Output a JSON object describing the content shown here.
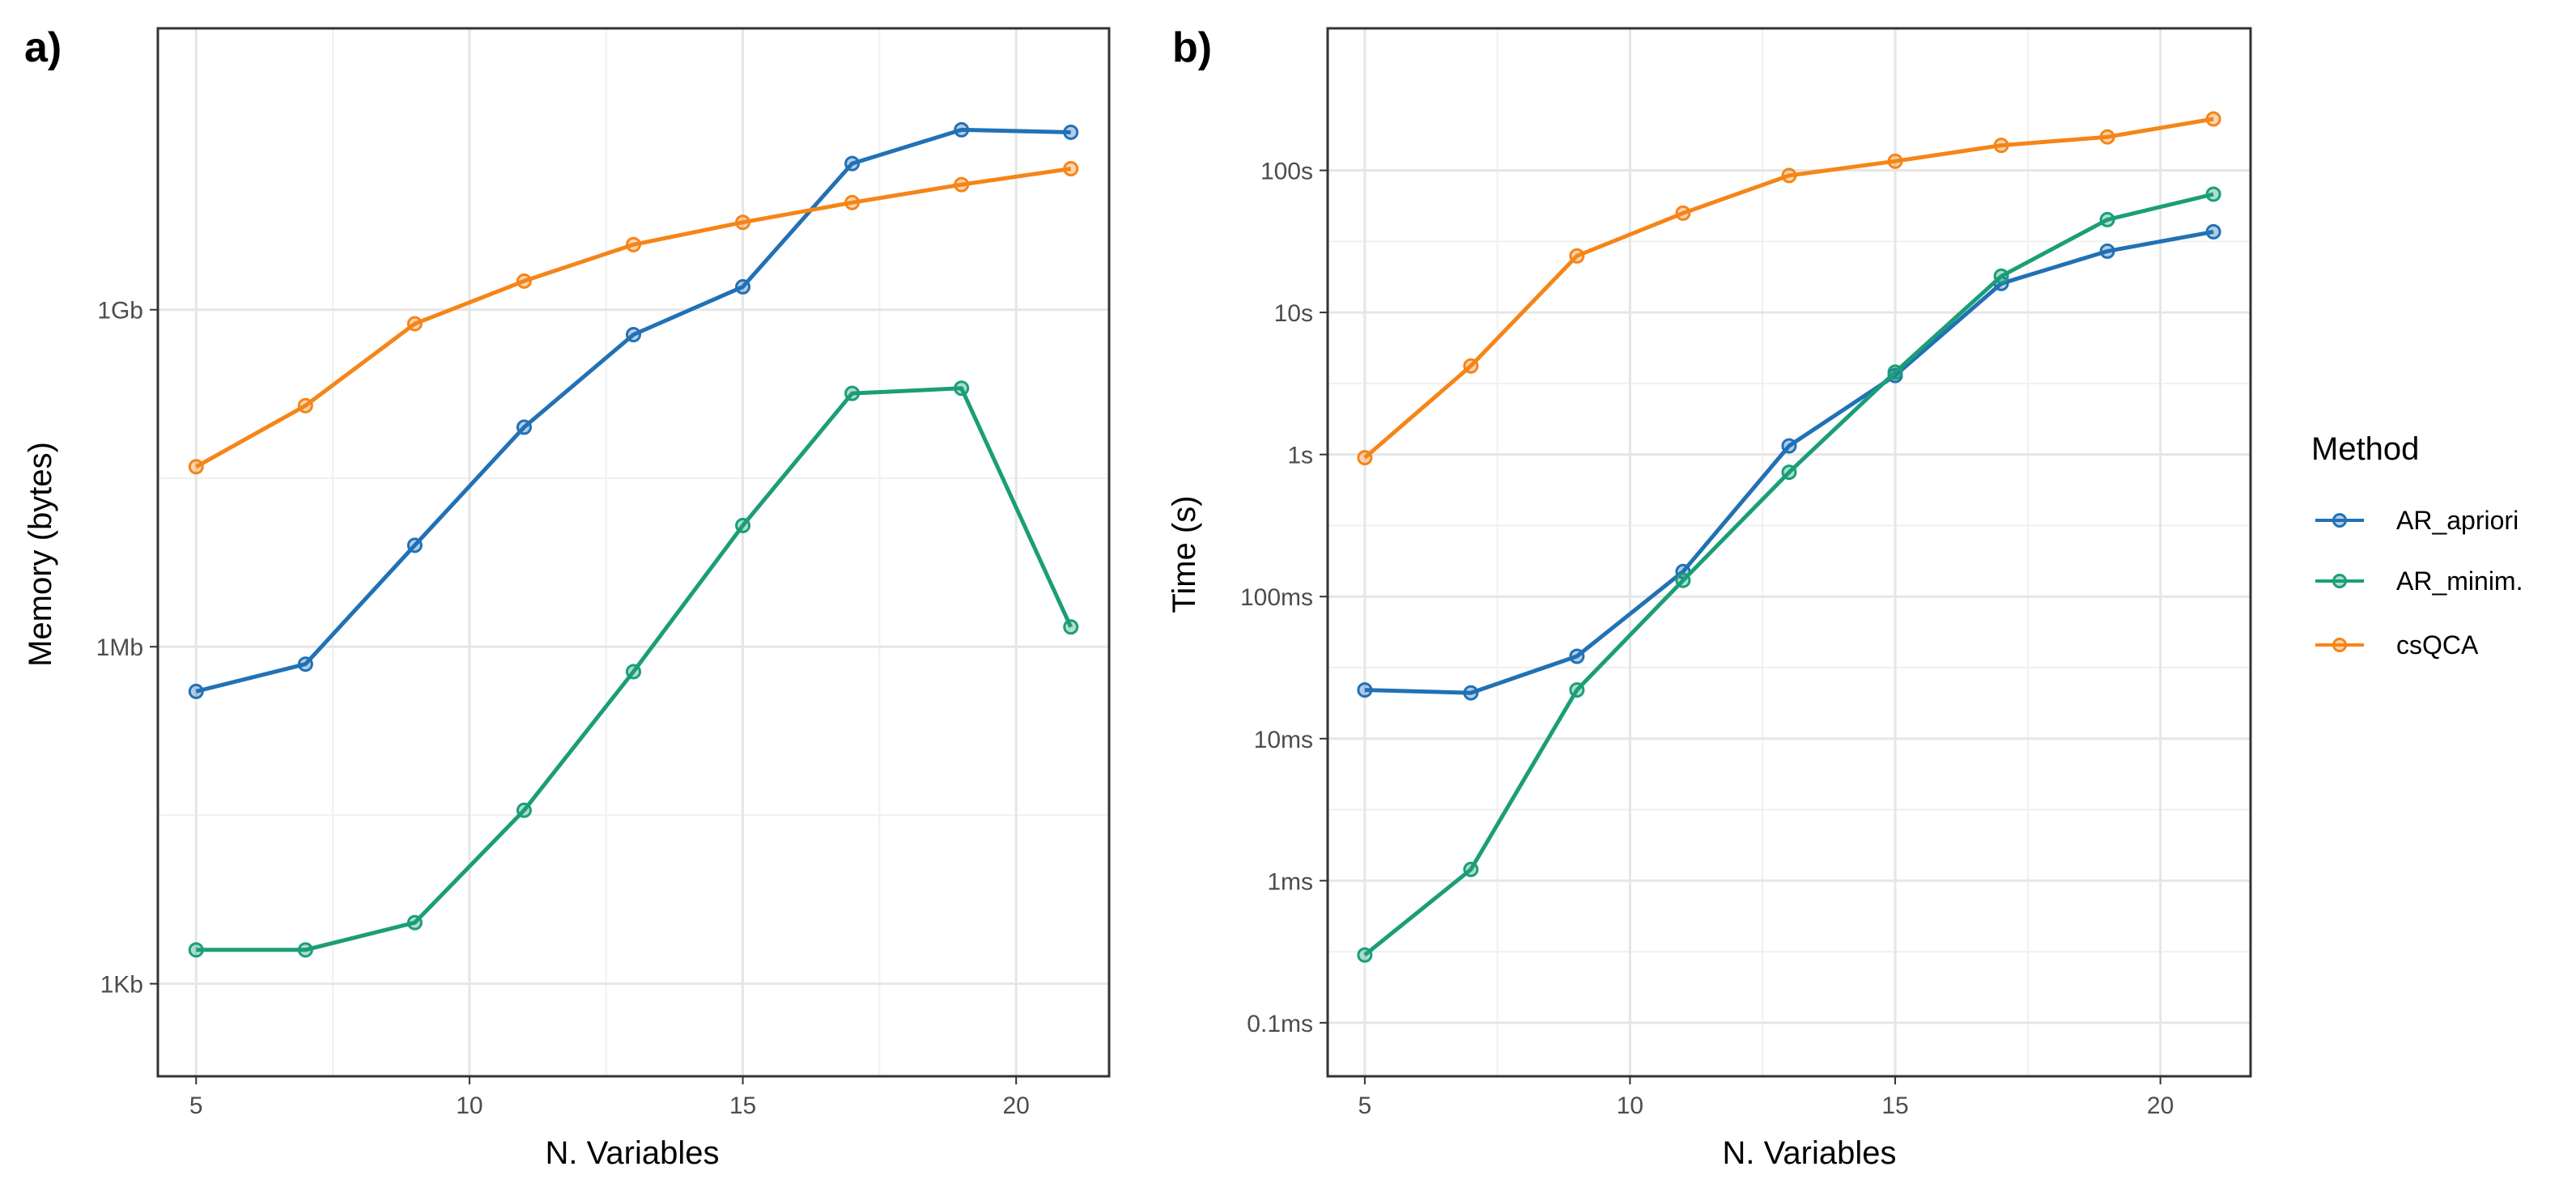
{
  "legend": {
    "title": "Method",
    "items": [
      {
        "label": "AR_apriori",
        "color": "#2171b5"
      },
      {
        "label": "AR_minim.",
        "color": "#1b9e77"
      },
      {
        "label": "csQCA",
        "color": "#f58518"
      }
    ]
  },
  "chart_data": [
    {
      "type": "line",
      "panel_tag": "a)",
      "xlabel": "N. Variables",
      "ylabel": "Memory (bytes)",
      "y_scale": "log10",
      "xlim": [
        4.3,
        21.7
      ],
      "ylim": [
        150,
        320000000000.0
      ],
      "x_ticks": [
        5,
        10,
        15,
        20
      ],
      "y_ticks": [
        {
          "value": 1000,
          "label": "1Kb"
        },
        {
          "value": 1000000,
          "label": "1Mb"
        },
        {
          "value": 1000000000,
          "label": "1Gb"
        }
      ],
      "grid": true,
      "x": [
        5,
        7,
        9,
        11,
        13,
        15,
        17,
        19,
        21
      ],
      "series": [
        {
          "name": "AR_apriori",
          "color": "#2171b5",
          "values": [
            400000,
            700000,
            8000000,
            90000000,
            600000000,
            1600000000,
            20000000000,
            40000000000,
            38000000000
          ]
        },
        {
          "name": "AR_minim.",
          "color": "#1b9e77",
          "values": [
            2000,
            2000,
            3500,
            35000,
            600000,
            12000000,
            180000000,
            200000000,
            1500000
          ]
        },
        {
          "name": "csQCA",
          "color": "#f58518",
          "values": [
            40000000,
            140000000,
            750000000,
            1800000000,
            3800000000,
            6000000000,
            9000000000,
            13000000000,
            18000000000
          ]
        }
      ]
    },
    {
      "type": "line",
      "panel_tag": "b)",
      "xlabel": "N. Variables",
      "ylabel": "Time (s)",
      "y_scale": "log10",
      "xlim": [
        4.3,
        21.7
      ],
      "ylim": [
        4.2e-05,
        1000
      ],
      "x_ticks": [
        5,
        10,
        15,
        20
      ],
      "y_ticks": [
        {
          "value": 0.0001,
          "label": "0.1ms"
        },
        {
          "value": 0.001,
          "label": "1ms"
        },
        {
          "value": 0.01,
          "label": "10ms"
        },
        {
          "value": 0.1,
          "label": "100ms"
        },
        {
          "value": 1,
          "label": "1s"
        },
        {
          "value": 10,
          "label": "10s"
        },
        {
          "value": 100,
          "label": "100s"
        }
      ],
      "grid": true,
      "x": [
        5,
        7,
        9,
        11,
        13,
        15,
        17,
        19,
        21
      ],
      "series": [
        {
          "name": "AR_apriori",
          "color": "#2171b5",
          "values": [
            0.022,
            0.021,
            0.038,
            0.15,
            1.15,
            3.6,
            16,
            27,
            37
          ]
        },
        {
          "name": "AR_minim.",
          "color": "#1b9e77",
          "values": [
            0.0003,
            0.0012,
            0.022,
            0.13,
            0.75,
            3.8,
            18,
            45,
            68
          ]
        },
        {
          "name": "csQCA",
          "color": "#f58518",
          "values": [
            0.95,
            4.2,
            25,
            50,
            92,
            116,
            150,
            172,
            230
          ]
        }
      ]
    }
  ]
}
